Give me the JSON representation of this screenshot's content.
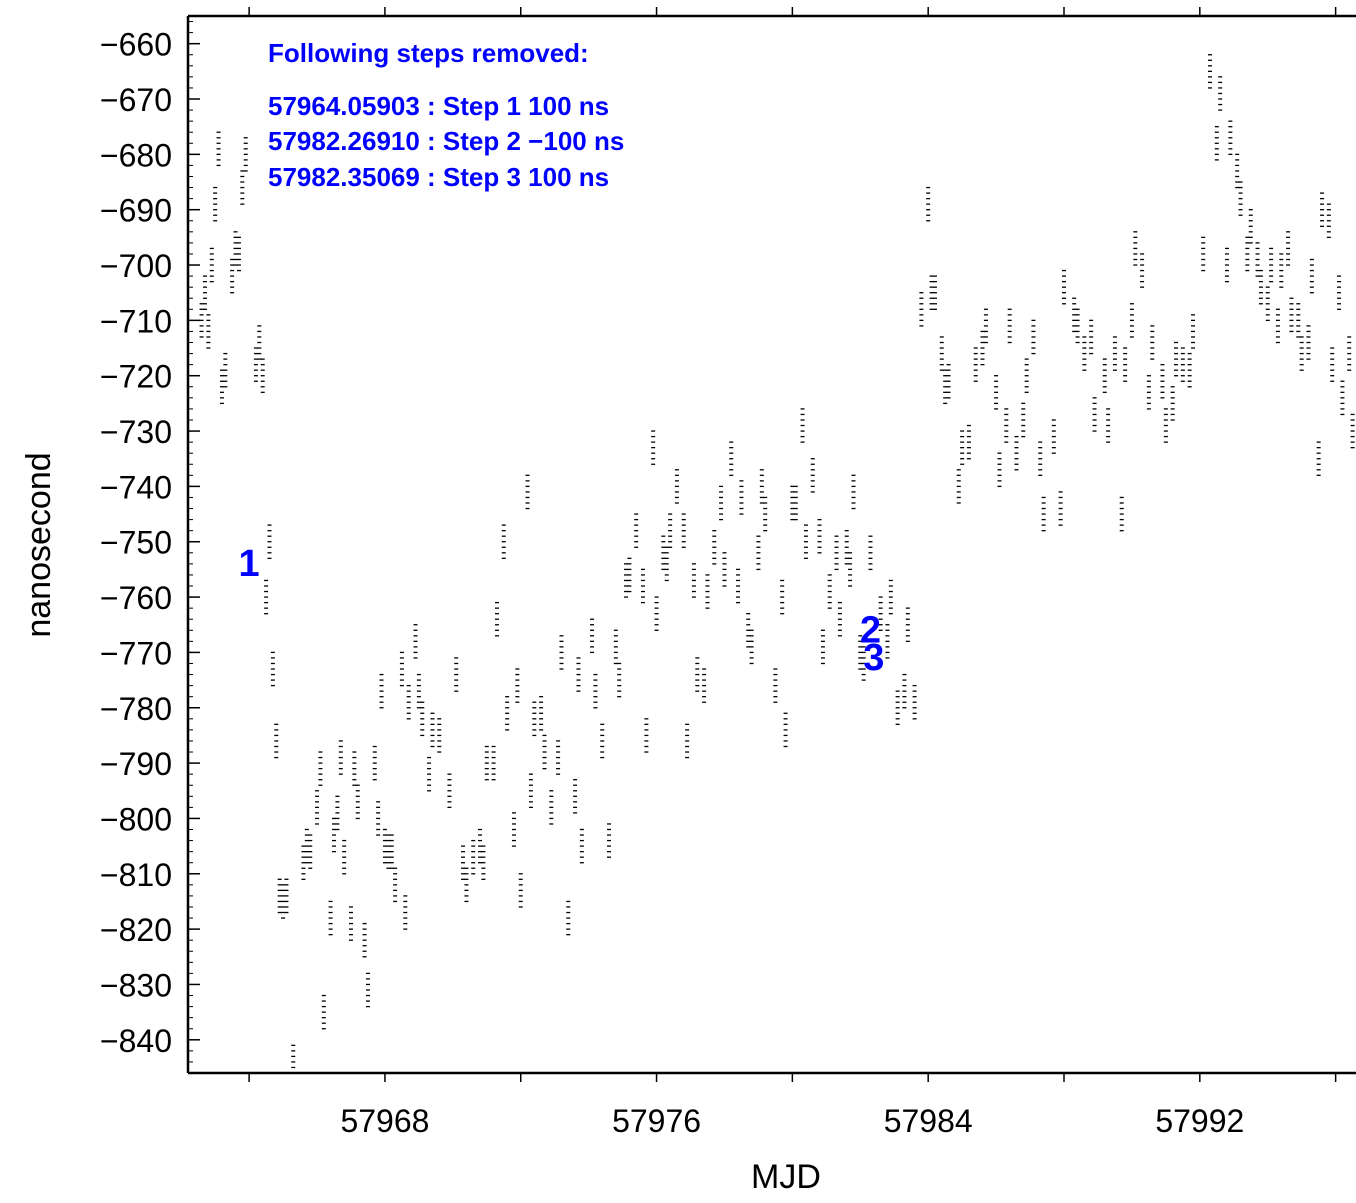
{
  "chart_data": {
    "type": "scatter",
    "xlabel": "MJD",
    "ylabel": "nanosecond",
    "xlim": [
      57962.2,
      57996.6
    ],
    "ylim": [
      -846,
      -655
    ],
    "x_ticks": [
      57968,
      57976,
      57984,
      57992
    ],
    "x_tick_labels": [
      "57968",
      "57976",
      "57984",
      "57992"
    ],
    "x_minor_step": 4,
    "y_ticks": [
      -660,
      -670,
      -680,
      -690,
      -700,
      -710,
      -720,
      -730,
      -740,
      -750,
      -760,
      -770,
      -780,
      -790,
      -800,
      -810,
      -820,
      -830,
      -840
    ],
    "y_tick_labels": [
      "−660",
      "−670",
      "−680",
      "−690",
      "−700",
      "−710",
      "−720",
      "−730",
      "−740",
      "−750",
      "−760",
      "−770",
      "−780",
      "−790",
      "−800",
      "−810",
      "−820",
      "−830",
      "−840"
    ],
    "y_minor_step": 2,
    "grid": false,
    "marker": "short horizontal dash",
    "color": "#000000",
    "annotation_color": "#0000ff",
    "annotation_title": "Following steps removed:",
    "annotation_lines": [
      "57964.05903 : Step 1 100 ns",
      "57982.26910 : Step 2 −100 ns",
      "57982.35069 : Step 3 100 ns"
    ],
    "step_markers": [
      {
        "label": "1",
        "x": 57964.0,
        "y": -754
      },
      {
        "label": "2",
        "x": 57982.3,
        "y": -766
      },
      {
        "label": "3",
        "x": 57982.4,
        "y": -771
      }
    ],
    "data_points": [
      [
        57962.6,
        -710
      ],
      [
        57962.7,
        -705
      ],
      [
        57962.8,
        -712
      ],
      [
        57962.9,
        -700
      ],
      [
        57963.0,
        -689
      ],
      [
        57963.1,
        -679
      ],
      [
        57963.2,
        -722
      ],
      [
        57963.3,
        -719
      ],
      [
        57963.5,
        -702
      ],
      [
        57963.6,
        -697
      ],
      [
        57963.7,
        -698
      ],
      [
        57963.8,
        -686
      ],
      [
        57963.9,
        -680
      ],
      [
        57964.2,
        -718
      ],
      [
        57964.3,
        -714
      ],
      [
        57964.4,
        -720
      ],
      [
        57964.5,
        -760
      ],
      [
        57964.6,
        -750
      ],
      [
        57964.7,
        -773
      ],
      [
        57964.8,
        -786
      ],
      [
        57964.9,
        -814
      ],
      [
        57965.0,
        -815
      ],
      [
        57965.1,
        -814
      ],
      [
        57965.3,
        -844
      ],
      [
        57965.6,
        -808
      ],
      [
        57965.8,
        -806
      ],
      [
        57966.0,
        -798
      ],
      [
        57966.1,
        -791
      ],
      [
        57966.2,
        -835
      ],
      [
        57966.4,
        -818
      ],
      [
        57966.6,
        -799
      ],
      [
        57966.7,
        -789
      ],
      [
        57966.8,
        -807
      ],
      [
        57967.0,
        -819
      ],
      [
        57967.2,
        -797
      ],
      [
        57967.4,
        -822
      ],
      [
        57967.5,
        -831
      ],
      [
        57967.7,
        -790
      ],
      [
        57967.9,
        -777
      ],
      [
        57968.0,
        -805
      ],
      [
        57968.1,
        -806
      ],
      [
        57968.3,
        -812
      ],
      [
        57968.5,
        -773
      ],
      [
        57968.6,
        -817
      ],
      [
        57968.7,
        -779
      ],
      [
        57968.9,
        -768
      ],
      [
        57969.0,
        -777
      ],
      [
        57969.1,
        -782
      ],
      [
        57969.3,
        -792
      ],
      [
        57969.6,
        -785
      ],
      [
        57969.9,
        -795
      ],
      [
        57970.1,
        -774
      ],
      [
        57970.3,
        -808
      ],
      [
        57970.6,
        -807
      ],
      [
        57970.9,
        -808
      ],
      [
        57971.0,
        -790
      ],
      [
        57971.3,
        -764
      ],
      [
        57971.6,
        -781
      ],
      [
        57971.9,
        -776
      ],
      [
        57972.0,
        -813
      ],
      [
        57972.2,
        -741
      ],
      [
        57972.3,
        -795
      ],
      [
        57972.6,
        -781
      ],
      [
        57972.9,
        -798
      ],
      [
        57973.1,
        -789
      ],
      [
        57973.4,
        -818
      ],
      [
        57973.7,
        -774
      ],
      [
        57974.1,
        -767
      ],
      [
        57974.4,
        -786
      ],
      [
        57974.6,
        -804
      ],
      [
        57974.9,
        -775
      ],
      [
        57975.1,
        -757
      ],
      [
        57975.4,
        -748
      ],
      [
        57975.7,
        -785
      ],
      [
        57976.0,
        -763
      ],
      [
        57976.2,
        -752
      ],
      [
        57976.4,
        -748
      ],
      [
        57976.6,
        -740
      ],
      [
        57976.9,
        -786
      ],
      [
        57977.2,
        -774
      ],
      [
        57977.4,
        -776
      ],
      [
        57977.7,
        -751
      ],
      [
        57977.9,
        -743
      ],
      [
        57978.2,
        -735
      ],
      [
        57978.4,
        -758
      ],
      [
        57978.7,
        -766
      ],
      [
        57979.0,
        -752
      ],
      [
        57979.2,
        -745
      ],
      [
        57979.5,
        -776
      ],
      [
        57979.8,
        -784
      ],
      [
        57980.0,
        -743
      ],
      [
        57980.3,
        -729
      ],
      [
        57980.6,
        -738
      ],
      [
        57980.8,
        -749
      ],
      [
        57981.1,
        -759
      ],
      [
        57981.4,
        -764
      ],
      [
        57981.6,
        -751
      ],
      [
        57981.8,
        -741
      ],
      [
        57982.0,
        -770
      ],
      [
        57982.3,
        -752
      ],
      [
        57982.6,
        -763
      ],
      [
        57982.9,
        -760
      ],
      [
        57983.1,
        -780
      ],
      [
        57983.4,
        -765
      ],
      [
        57983.6,
        -779
      ],
      [
        57983.8,
        -708
      ],
      [
        57984.1,
        -705
      ],
      [
        57984.4,
        -716
      ],
      [
        57984.6,
        -721
      ],
      [
        57984.9,
        -740
      ],
      [
        57985.2,
        -732
      ],
      [
        57985.4,
        -718
      ],
      [
        57985.7,
        -711
      ],
      [
        57986.0,
        -723
      ],
      [
        57986.3,
        -729
      ],
      [
        57986.6,
        -734
      ],
      [
        57986.9,
        -720
      ],
      [
        57987.1,
        -713
      ],
      [
        57987.4,
        -745
      ],
      [
        57987.7,
        -731
      ],
      [
        57988.0,
        -704
      ],
      [
        57988.3,
        -709
      ],
      [
        57988.6,
        -716
      ],
      [
        57988.9,
        -727
      ],
      [
        57989.2,
        -720
      ],
      [
        57989.5,
        -716
      ],
      [
        57989.8,
        -718
      ],
      [
        57990.1,
        -697
      ],
      [
        57990.3,
        -701
      ],
      [
        57990.6,
        -714
      ],
      [
        57990.9,
        -721
      ],
      [
        57991.2,
        -725
      ],
      [
        57991.5,
        -718
      ],
      [
        57991.8,
        -712
      ],
      [
        57992.1,
        -698
      ],
      [
        57992.3,
        -665
      ],
      [
        57992.6,
        -669
      ],
      [
        57992.9,
        -677
      ],
      [
        57993.2,
        -688
      ],
      [
        57993.5,
        -693
      ],
      [
        57993.8,
        -704
      ],
      [
        57994.1,
        -700
      ],
      [
        57994.4,
        -701
      ],
      [
        57994.7,
        -709
      ],
      [
        57995.0,
        -716
      ],
      [
        57995.3,
        -702
      ],
      [
        57995.6,
        -690
      ],
      [
        57995.9,
        -718
      ],
      [
        57996.2,
        -724
      ],
      [
        57996.5,
        -730
      ],
      [
        57965.7,
        -805
      ],
      [
        57966.5,
        -803
      ],
      [
        57967.1,
        -791
      ],
      [
        57967.8,
        -800
      ],
      [
        57968.2,
        -806
      ],
      [
        57969.4,
        -784
      ],
      [
        57970.4,
        -812
      ],
      [
        57970.8,
        -805
      ],
      [
        57971.2,
        -790
      ],
      [
        57971.5,
        -750
      ],
      [
        57971.8,
        -802
      ],
      [
        57972.4,
        -782
      ],
      [
        57972.7,
        -788
      ],
      [
        57973.2,
        -770
      ],
      [
        57973.6,
        -796
      ],
      [
        57973.8,
        -805
      ],
      [
        57974.2,
        -777
      ],
      [
        57974.8,
        -769
      ],
      [
        57975.2,
        -756
      ],
      [
        57975.6,
        -758
      ],
      [
        57975.9,
        -733
      ],
      [
        57976.3,
        -754
      ],
      [
        57976.8,
        -748
      ],
      [
        57977.1,
        -757
      ],
      [
        57977.5,
        -759
      ],
      [
        57978.0,
        -755
      ],
      [
        57978.5,
        -742
      ],
      [
        57978.8,
        -769
      ],
      [
        57979.1,
        -740
      ],
      [
        57979.7,
        -760
      ],
      [
        57980.1,
        -743
      ],
      [
        57980.4,
        -750
      ],
      [
        57980.9,
        -769
      ],
      [
        57981.3,
        -752
      ],
      [
        57981.7,
        -755
      ],
      [
        57982.1,
        -772
      ],
      [
        57982.8,
        -768
      ],
      [
        57983.3,
        -777
      ],
      [
        57984.0,
        -689
      ],
      [
        57984.2,
        -705
      ],
      [
        57984.5,
        -722
      ],
      [
        57985.0,
        -733
      ],
      [
        57985.6,
        -715
      ],
      [
        57986.1,
        -737
      ],
      [
        57986.4,
        -711
      ],
      [
        57986.8,
        -728
      ],
      [
        57987.3,
        -735
      ],
      [
        57987.9,
        -744
      ],
      [
        57988.4,
        -711
      ],
      [
        57988.8,
        -713
      ],
      [
        57989.3,
        -729
      ],
      [
        57989.7,
        -745
      ],
      [
        57990.0,
        -710
      ],
      [
        57990.5,
        -723
      ],
      [
        57991.0,
        -729
      ],
      [
        57991.3,
        -717
      ],
      [
        57991.7,
        -719
      ],
      [
        57992.5,
        -678
      ],
      [
        57992.8,
        -700
      ],
      [
        57993.1,
        -683
      ],
      [
        57993.4,
        -698
      ],
      [
        57993.7,
        -699
      ],
      [
        57994.0,
        -707
      ],
      [
        57994.3,
        -711
      ],
      [
        57994.6,
        -697
      ],
      [
        57994.9,
        -710
      ],
      [
        57995.2,
        -714
      ],
      [
        57995.5,
        -735
      ],
      [
        57995.8,
        -692
      ],
      [
        57996.1,
        -705
      ],
      [
        57996.4,
        -716
      ]
    ]
  }
}
